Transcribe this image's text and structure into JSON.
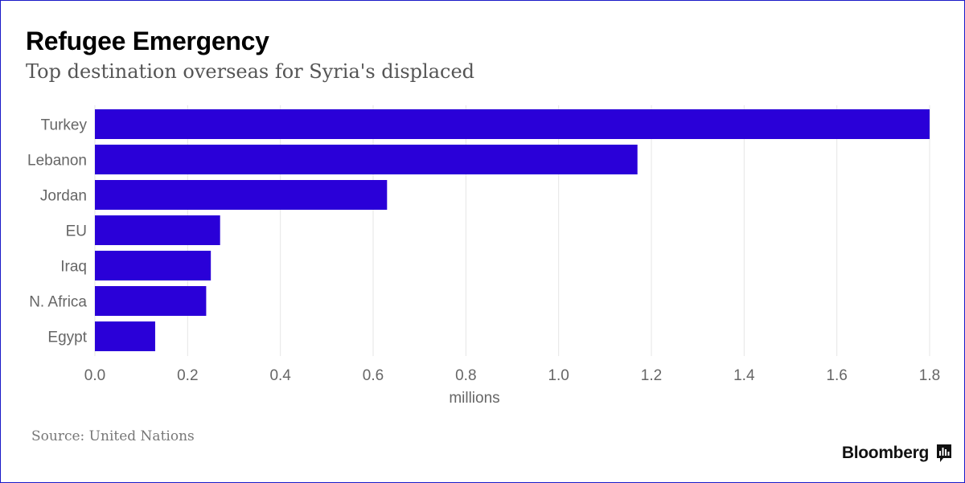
{
  "header": {
    "title": "Refugee Emergency",
    "subtitle": "Top destination overseas for Syria's displaced"
  },
  "footer": {
    "source": "Source: United Nations",
    "brand": "Bloomberg",
    "brand_icon": "bloomberg-chart-icon"
  },
  "colors": {
    "bar": "#2a00d8",
    "grid": "#e6e6e6",
    "axis_text": "#666666",
    "border": "#1a1ac8"
  },
  "chart_data": {
    "type": "bar",
    "orientation": "horizontal",
    "categories": [
      "Turkey",
      "Lebanon",
      "Jordan",
      "EU",
      "Iraq",
      "N. Africa",
      "Egypt"
    ],
    "values": [
      1.8,
      1.17,
      0.63,
      0.27,
      0.25,
      0.24,
      0.13
    ],
    "xlabel": "millions",
    "ylabel": "",
    "xlim": [
      0,
      1.8
    ],
    "xticks": [
      0.0,
      0.2,
      0.4,
      0.6,
      0.8,
      1.0,
      1.2,
      1.4,
      1.6,
      1.8
    ],
    "xtick_labels": [
      "0.0",
      "0.2",
      "0.4",
      "0.6",
      "0.8",
      "1.0",
      "1.2",
      "1.4",
      "1.6",
      "1.8"
    ],
    "grid": "vertical",
    "legend": "none"
  }
}
